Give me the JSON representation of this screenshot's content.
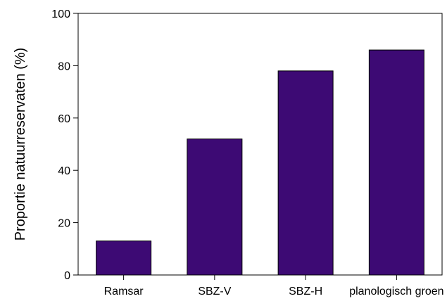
{
  "chart_data": {
    "type": "bar",
    "categories": [
      "Ramsar",
      "SBZ-V",
      "SBZ-H",
      "planologisch groen"
    ],
    "values": [
      13,
      52,
      78,
      86
    ],
    "title": "",
    "xlabel": "",
    "ylabel": "Proportie natuurreservaten (%)",
    "ylim": [
      0,
      100
    ],
    "yticks": [
      0,
      20,
      40,
      60,
      80,
      100
    ],
    "ytick_labels": [
      "0",
      "20",
      "40",
      "60",
      "80",
      "100"
    ],
    "grid": false,
    "legend": "none",
    "colors": {
      "bar": "#3d0a74",
      "bar_edge": "#000000",
      "axis": "#000000"
    }
  }
}
